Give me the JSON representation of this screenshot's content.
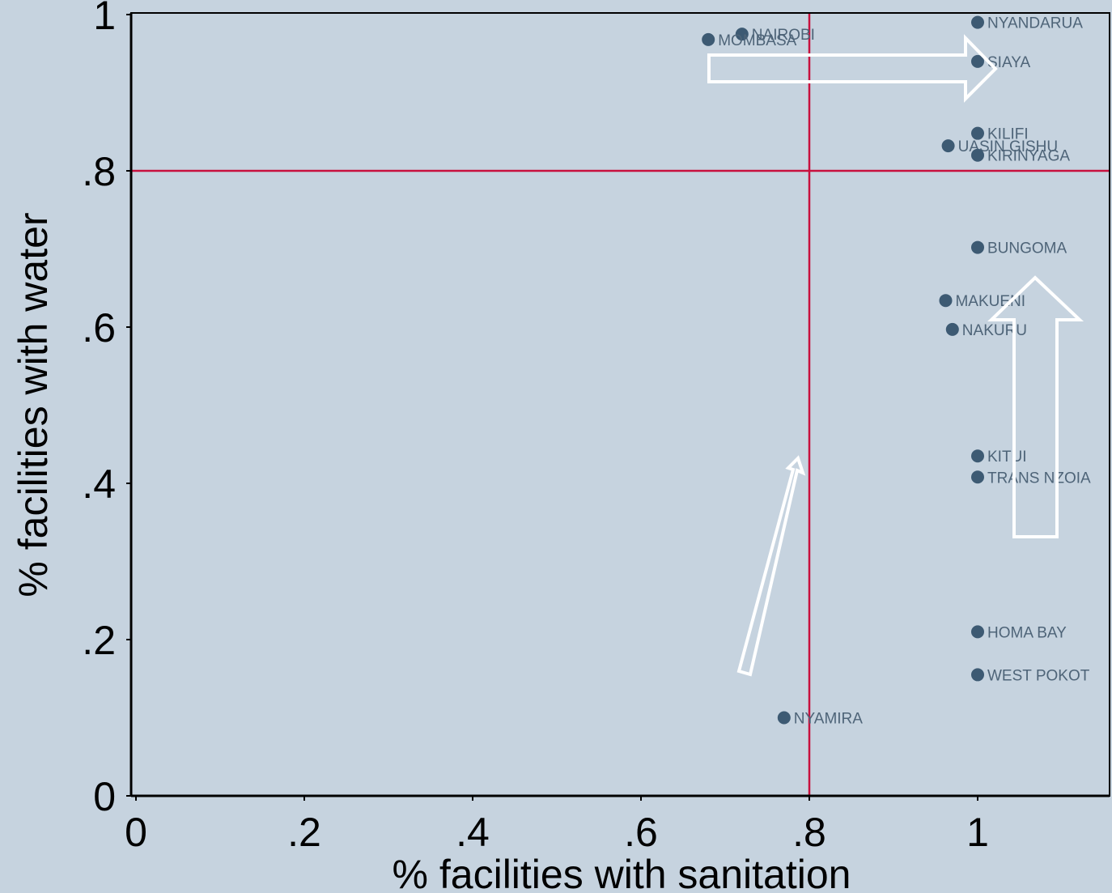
{
  "chart_data": {
    "type": "scatter",
    "title": "",
    "xlabel": "% facilities with sanitation",
    "ylabel": "% facilities with water",
    "xlim": [
      0,
      1.16
    ],
    "ylim": [
      0,
      1.0
    ],
    "x_ticks": [
      {
        "value": 0,
        "label": "0"
      },
      {
        "value": 0.2,
        "label": ".2"
      },
      {
        "value": 0.4,
        "label": ".4"
      },
      {
        "value": 0.6,
        "label": ".6"
      },
      {
        "value": 0.8,
        "label": ".8"
      },
      {
        "value": 1.0,
        "label": "1"
      }
    ],
    "y_ticks": [
      {
        "value": 0,
        "label": "0"
      },
      {
        "value": 0.2,
        "label": ".2"
      },
      {
        "value": 0.4,
        "label": ".4"
      },
      {
        "value": 0.6,
        "label": ".6"
      },
      {
        "value": 0.8,
        "label": ".8"
      },
      {
        "value": 1.0,
        "label": "1"
      }
    ],
    "reference_lines": {
      "x": 0.8,
      "y": 0.8,
      "color": "#c8103e"
    },
    "grid": false,
    "legend": "none",
    "marker_color": "#3d5a73",
    "points": [
      {
        "label": "NYANDARUA",
        "x": 1.0,
        "y": 0.99
      },
      {
        "label": "NAIROBI",
        "x": 0.72,
        "y": 0.975
      },
      {
        "label": "MOMBASA",
        "x": 0.68,
        "y": 0.968
      },
      {
        "label": "SIAYA",
        "x": 1.0,
        "y": 0.94
      },
      {
        "label": "KILIFI",
        "x": 1.0,
        "y": 0.848
      },
      {
        "label": "UASIN GISHU",
        "x": 0.965,
        "y": 0.832
      },
      {
        "label": "KIRINYAGA",
        "x": 1.0,
        "y": 0.82
      },
      {
        "label": "BUNGOMA",
        "x": 1.0,
        "y": 0.702
      },
      {
        "label": "MAKUENI",
        "x": 0.962,
        "y": 0.634
      },
      {
        "label": "NAKURU",
        "x": 0.97,
        "y": 0.597
      },
      {
        "label": "KITUI",
        "x": 1.0,
        "y": 0.435
      },
      {
        "label": "TRANS NZOIA",
        "x": 1.0,
        "y": 0.408
      },
      {
        "label": "HOMA BAY",
        "x": 1.0,
        "y": 0.21
      },
      {
        "label": "WEST POKOT",
        "x": 1.0,
        "y": 0.155
      },
      {
        "label": "NYAMIRA",
        "x": 0.77,
        "y": 0.1
      }
    ],
    "annotations": [
      {
        "shape": "block-arrow",
        "direction": "right"
      },
      {
        "shape": "block-arrow",
        "direction": "up"
      },
      {
        "shape": "thin-arrow",
        "direction": "up-right"
      }
    ]
  }
}
